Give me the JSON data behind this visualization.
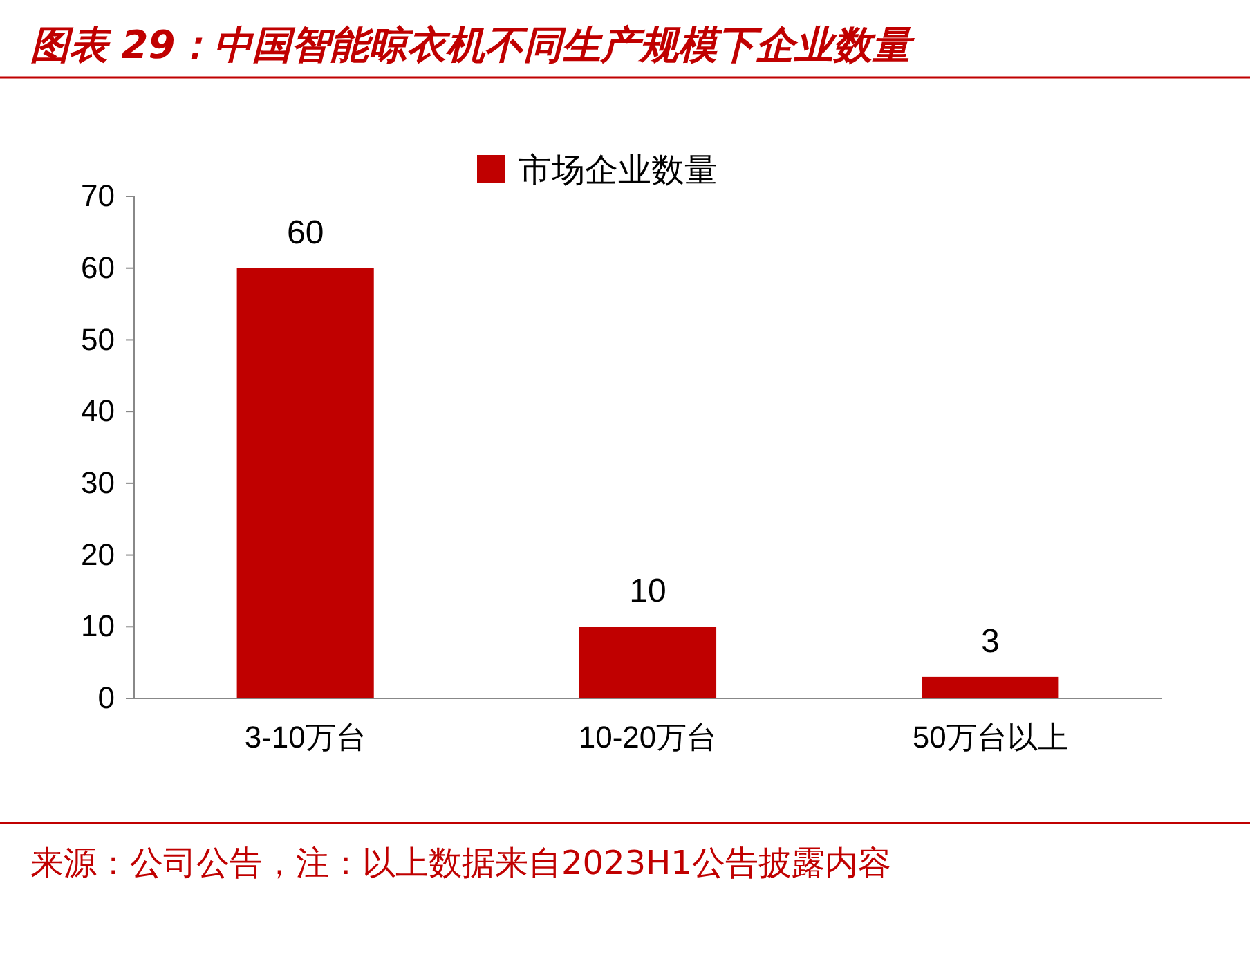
{
  "chart_data": {
    "type": "bar",
    "title": "图表 29：中国智能晾衣机不同生产规模下企业数量",
    "categories": [
      "3-10万台",
      "10-20万台",
      "50万台以上"
    ],
    "series": [
      {
        "name": "市场企业数量",
        "color": "#c00000",
        "values": [
          60,
          10,
          3
        ]
      }
    ],
    "ylim": [
      0,
      70
    ],
    "yticks": [
      0,
      10,
      20,
      30,
      40,
      50,
      60,
      70
    ],
    "grid": false,
    "legend": "top",
    "data_labels": true,
    "annotations": [
      "来源：公司公告，注：以上数据来自2023H1公告披露内容"
    ]
  }
}
